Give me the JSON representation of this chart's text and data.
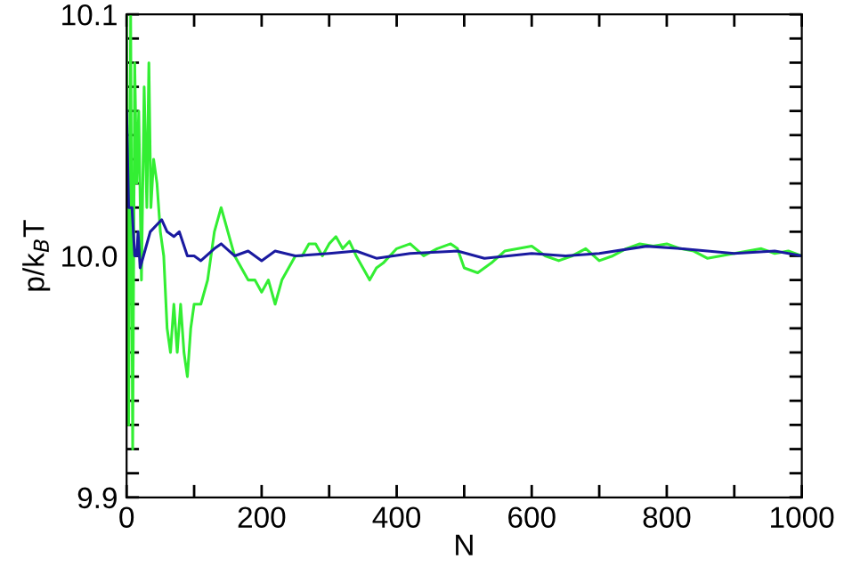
{
  "chart_data": {
    "type": "line",
    "xlabel": "N",
    "ylabel": "p/k$_{B}$T",
    "xlim": [
      0,
      1000
    ],
    "ylim": [
      9.9,
      10.1
    ],
    "xticks": [
      0,
      {
        "value": 100,
        "label": null
      },
      200,
      {
        "value": 300,
        "label": null
      },
      400,
      {
        "value": 500,
        "label": null
      },
      600,
      {
        "value": 700,
        "label": null
      },
      800,
      {
        "value": 900,
        "label": null
      },
      1000
    ],
    "yticks": [
      {
        "value": 9.9,
        "label": "9.9"
      },
      {
        "value": 9.91,
        "label": null
      },
      {
        "value": 9.92,
        "label": null
      },
      {
        "value": 9.93,
        "label": null
      },
      {
        "value": 9.94,
        "label": null
      },
      {
        "value": 9.95,
        "label": null
      },
      {
        "value": 9.96,
        "label": null
      },
      {
        "value": 9.97,
        "label": null
      },
      {
        "value": 9.98,
        "label": null
      },
      {
        "value": 9.99,
        "label": null
      },
      {
        "value": 10.0,
        "label": "10.0"
      },
      {
        "value": 10.01,
        "label": null
      },
      {
        "value": 10.02,
        "label": null
      },
      {
        "value": 10.03,
        "label": null
      },
      {
        "value": 10.04,
        "label": null
      },
      {
        "value": 10.05,
        "label": null
      },
      {
        "value": 10.06,
        "label": null
      },
      {
        "value": 10.07,
        "label": null
      },
      {
        "value": 10.08,
        "label": null
      },
      {
        "value": 10.09,
        "label": null
      },
      {
        "value": 10.1,
        "label": "10.1"
      }
    ],
    "grid": false,
    "line_style": "solid",
    "marker": "none",
    "series": [
      {
        "color": "#33ee33",
        "x": [
          0,
          3,
          6,
          9,
          12,
          15,
          18,
          22,
          26,
          30,
          33,
          36,
          40,
          45,
          50,
          55,
          60,
          65,
          70,
          75,
          80,
          85,
          90,
          95,
          100,
          110,
          120,
          130,
          140,
          145,
          150,
          160,
          170,
          180,
          190,
          200,
          210,
          220,
          230,
          240,
          250,
          260,
          270,
          280,
          290,
          300,
          310,
          320,
          330,
          340,
          350,
          360,
          370,
          380,
          400,
          420,
          440,
          460,
          480,
          490,
          500,
          520,
          540,
          560,
          580,
          600,
          620,
          640,
          660,
          680,
          700,
          720,
          740,
          760,
          780,
          800,
          820,
          840,
          860,
          880,
          900,
          920,
          940,
          960,
          980,
          1000
        ],
        "values": [
          10.1,
          9.93,
          10.1,
          9.92,
          10.08,
          10.03,
          10.06,
          9.99,
          10.07,
          10.02,
          10.08,
          10.02,
          10.04,
          10.03,
          10.01,
          10.0,
          9.97,
          9.96,
          9.98,
          9.96,
          9.98,
          9.96,
          9.95,
          9.97,
          9.98,
          9.98,
          9.99,
          10.01,
          10.02,
          10.015,
          10.01,
          10.0,
          9.995,
          9.99,
          9.99,
          9.985,
          9.99,
          9.98,
          9.99,
          9.995,
          10.0,
          10.0,
          10.005,
          10.005,
          10.0,
          10.005,
          10.008,
          10.003,
          10.006,
          10.0,
          9.995,
          9.99,
          9.995,
          9.997,
          10.003,
          10.005,
          10.0,
          10.003,
          10.005,
          10.003,
          9.995,
          9.993,
          9.997,
          10.002,
          10.003,
          10.004,
          10.0,
          9.998,
          10.0,
          10.003,
          9.998,
          10.0,
          10.003,
          10.005,
          10.004,
          10.005,
          10.003,
          10.002,
          9.999,
          10.0,
          10.001,
          10.002,
          10.003,
          10.001,
          10.002,
          10.0
        ]
      },
      {
        "color": "#1a1aa0",
        "x": [
          0,
          3,
          8,
          12,
          15,
          17,
          20,
          25,
          35,
          52,
          60,
          70,
          78,
          90,
          100,
          110,
          130,
          140,
          160,
          180,
          200,
          220,
          250,
          300,
          340,
          370,
          420,
          490,
          530,
          600,
          650,
          700,
          770,
          820,
          900,
          960,
          1000
        ],
        "values": [
          10.06,
          10.02,
          10.02,
          10.0,
          10.0,
          10.01,
          9.995,
          10.0,
          10.01,
          10.015,
          10.01,
          10.008,
          10.01,
          10.0,
          10.0,
          9.998,
          10.003,
          10.005,
          10.0,
          10.002,
          9.998,
          10.002,
          10.0,
          10.001,
          10.002,
          9.999,
          10.001,
          10.002,
          9.999,
          10.001,
          10.0,
          10.001,
          10.004,
          10.003,
          10.001,
          10.002,
          10.0
        ]
      }
    ]
  }
}
